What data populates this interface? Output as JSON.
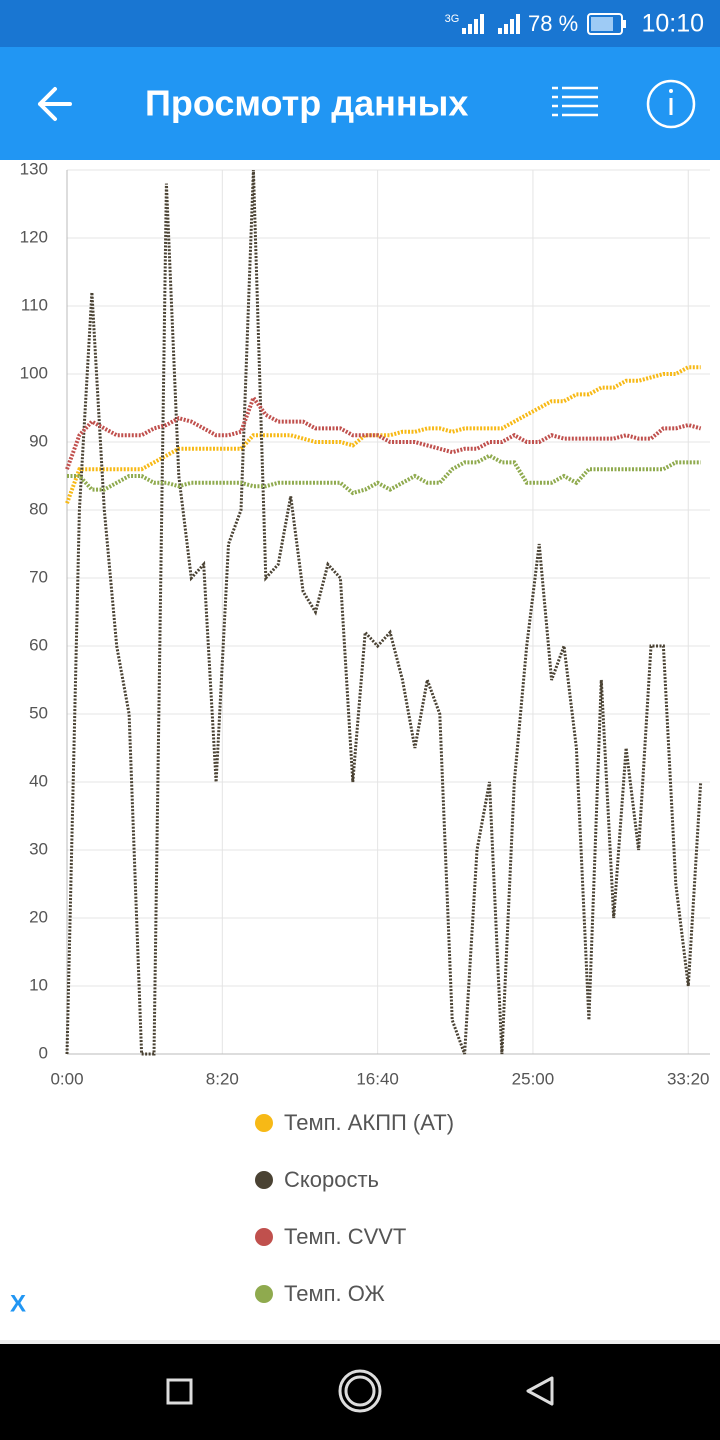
{
  "status_bar": {
    "network": "3G",
    "battery": "78 %",
    "time": "10:10"
  },
  "app_bar": {
    "title": "Просмотр данных"
  },
  "close_label": "X",
  "chart_data": {
    "type": "line",
    "x": [
      0,
      40,
      80,
      120,
      160,
      200,
      240,
      280,
      320,
      360,
      400,
      440,
      480,
      520,
      560,
      600,
      640,
      680,
      720,
      760,
      800,
      840,
      880,
      920,
      960,
      1000,
      1040,
      1080,
      1120,
      1160,
      1200,
      1240,
      1280,
      1320,
      1360,
      1400,
      1440,
      1480,
      1520,
      1560,
      1600,
      1640,
      1680,
      1720,
      1760,
      1800,
      1840,
      1880,
      1920,
      1960,
      2000,
      2040
    ],
    "xlim": [
      0,
      2070
    ],
    "xticks": [
      {
        "value": 0,
        "label": "0:00"
      },
      {
        "value": 500,
        "label": "8:20"
      },
      {
        "value": 1000,
        "label": "16:40"
      },
      {
        "value": 1500,
        "label": "25:00"
      },
      {
        "value": 2000,
        "label": "33:20"
      }
    ],
    "ylim": [
      0,
      130
    ],
    "yticks": [
      0,
      10,
      20,
      30,
      40,
      50,
      60,
      70,
      80,
      90,
      100,
      110,
      120,
      130
    ],
    "grid": true,
    "series": [
      {
        "name": "Темп. АКПП (AT)",
        "color": "#f7b916",
        "values": [
          81,
          86,
          86,
          86,
          86,
          86,
          86,
          87,
          88,
          89,
          89,
          89,
          89,
          89,
          89,
          91,
          91,
          91,
          91,
          90.5,
          90,
          90,
          90,
          89.5,
          91,
          91,
          91,
          91.5,
          91.5,
          92,
          92,
          91.5,
          92,
          92,
          92,
          92,
          93,
          94,
          95,
          96,
          96,
          97,
          97,
          98,
          98,
          99,
          99,
          99.5,
          100,
          100,
          101,
          101
        ]
      },
      {
        "name": "Скорость",
        "color": "#4a4233",
        "values": [
          0,
          80,
          112,
          80,
          60,
          50,
          0,
          0,
          128,
          85,
          70,
          72,
          40,
          75,
          80,
          130,
          70,
          72,
          82,
          68,
          65,
          72,
          70,
          40,
          62,
          60,
          62,
          55,
          45,
          55,
          50,
          5,
          0,
          30,
          40,
          0,
          40,
          60,
          75,
          55,
          60,
          45,
          5,
          55,
          20,
          45,
          30,
          60,
          60,
          25,
          10,
          40
        ]
      },
      {
        "name": "Темп. CVVT",
        "color": "#c0504d",
        "values": [
          86,
          91,
          93,
          92,
          91,
          91,
          91,
          92,
          92.5,
          93.5,
          93,
          92,
          91,
          91,
          91.5,
          96.5,
          94,
          93,
          93,
          93,
          92,
          92,
          92,
          91,
          91,
          91,
          90,
          90,
          90,
          89.5,
          89,
          88.5,
          89,
          89,
          90,
          90,
          91,
          90,
          90,
          91,
          90.5,
          90.5,
          90.5,
          90.5,
          90.5,
          91,
          90.5,
          90.5,
          92,
          92,
          92.5,
          92
        ]
      },
      {
        "name": "Темп. ОЖ",
        "color": "#8faa4e",
        "values": [
          85,
          85,
          83,
          83,
          84,
          85,
          85,
          84,
          84,
          83.5,
          84,
          84,
          84,
          84,
          84,
          83.5,
          83.5,
          84,
          84,
          84,
          84,
          84,
          84,
          82.5,
          83,
          84,
          83,
          84,
          85,
          84,
          84,
          86,
          87,
          87,
          88,
          87,
          87,
          84,
          84,
          84,
          85,
          84,
          86,
          86,
          86,
          86,
          86,
          86,
          86,
          87,
          87,
          87
        ]
      }
    ]
  }
}
